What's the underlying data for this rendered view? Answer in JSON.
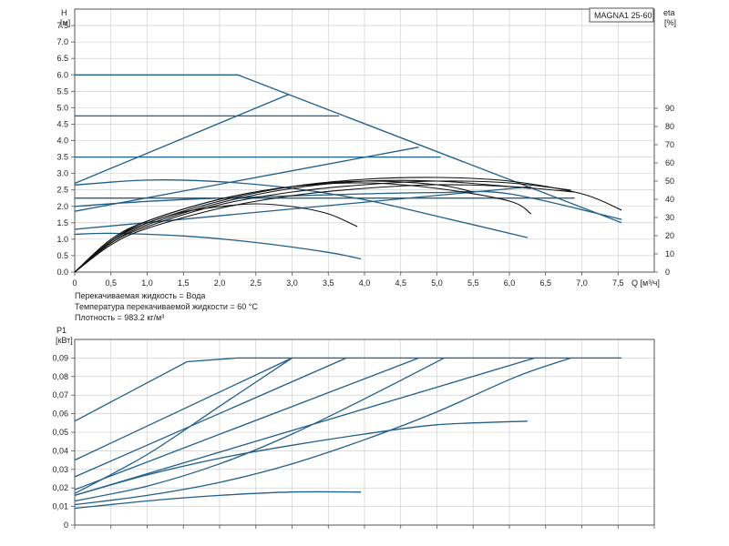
{
  "notes": [
    "Перекачиваемая жидкость = Вода",
    "Температура перекачиваемой жидкости = 60 °C",
    "Плотность = 983.2 кг/м³"
  ],
  "colors": {
    "curve": "#1f5f8b",
    "eff": "#111111",
    "grid": "#c8c8c8",
    "axis": "#555555"
  },
  "chart_data": [
    {
      "type": "line",
      "title": "MAGNA1 25-60",
      "xlabel": "Q [м³/ч]",
      "ylabel": "H\n[м]",
      "y2label": "eta\n[%]",
      "xlim": [
        0,
        8
      ],
      "ylim": [
        0,
        8
      ],
      "y2lim": [
        0,
        100
      ],
      "xticks": [
        "0",
        "0,5",
        "1,0",
        "1,5",
        "2,0",
        "2,5",
        "3,0",
        "3,5",
        "4,0",
        "4,5",
        "5,0",
        "5,5",
        "6,0",
        "6,5",
        "7,0",
        "7,5"
      ],
      "yticks": [
        "0.0",
        "0.5",
        "1.0",
        "1.5",
        "2.0",
        "2.5",
        "3.0",
        "3.5",
        "4.0",
        "4.5",
        "5.0",
        "5.5",
        "6.0",
        "6.5",
        "7.0",
        "7.5"
      ],
      "y2ticks": [
        "0",
        "10",
        "20",
        "30",
        "40",
        "50",
        "60",
        "70",
        "80",
        "90"
      ],
      "grid": true,
      "series": [
        {
          "kind": "head",
          "x": [
            0,
            2.25,
            7.55
          ],
          "y": [
            6.0,
            6.0,
            1.5
          ]
        },
        {
          "kind": "head",
          "x": [
            0,
            3.65
          ],
          "y": [
            4.75,
            4.75
          ]
        },
        {
          "kind": "head",
          "x": [
            0,
            5.05
          ],
          "y": [
            3.5,
            3.5
          ]
        },
        {
          "kind": "head",
          "x": [
            0,
            6.9
          ],
          "y": [
            2.25,
            2.25
          ]
        },
        {
          "kind": "head",
          "x": [
            0,
            2.95
          ],
          "y": [
            2.7,
            5.4
          ]
        },
        {
          "kind": "head",
          "x": [
            0,
            4.75
          ],
          "y": [
            1.85,
            3.8
          ]
        },
        {
          "kind": "head",
          "x": [
            0,
            6.3
          ],
          "y": [
            1.3,
            2.6
          ]
        },
        {
          "kind": "head",
          "x": [
            0,
            1.0,
            2.0,
            3.0,
            4.0,
            5.0,
            6.25
          ],
          "y": [
            2.65,
            2.8,
            2.75,
            2.55,
            2.2,
            1.7,
            1.05
          ]
        },
        {
          "kind": "head",
          "x": [
            0,
            0.5,
            1.5,
            2.5,
            3.5,
            3.95
          ],
          "y": [
            1.15,
            1.18,
            1.1,
            0.9,
            0.6,
            0.4
          ]
        },
        {
          "kind": "head",
          "x": [
            0,
            1.0,
            2.0,
            3.0,
            4.0,
            5.0,
            6.0,
            7.55
          ],
          "y": [
            2.0,
            2.15,
            2.25,
            2.32,
            2.38,
            2.42,
            2.38,
            1.6
          ]
        },
        {
          "kind": "eff",
          "x": [
            0,
            0.5,
            1.0,
            1.5,
            2.0,
            2.5,
            3.0,
            3.5,
            3.9
          ],
          "y": [
            0,
            17,
            27,
            33,
            36,
            37.5,
            36,
            32,
            25
          ]
        },
        {
          "kind": "eff",
          "x": [
            0,
            0.5,
            1.0,
            2.0,
            3.0,
            4.0,
            5.0,
            6.0,
            6.3
          ],
          "y": [
            0,
            17,
            28,
            40,
            47,
            49,
            46,
            39,
            32
          ]
        },
        {
          "kind": "eff",
          "x": [
            0,
            0.5,
            1.0,
            2.0,
            3.0,
            4.0,
            5.0,
            6.0,
            7.0,
            7.55
          ],
          "y": [
            0,
            17,
            27,
            39,
            47,
            51,
            52,
            50,
            43,
            34
          ]
        },
        {
          "kind": "eff",
          "x": [
            0,
            0.5,
            1.0,
            2.0,
            3.0,
            4.0,
            5.0,
            6.0,
            6.3
          ],
          "y": [
            0,
            16,
            26,
            38,
            46,
            50,
            50,
            47,
            46
          ]
        },
        {
          "kind": "eff",
          "x": [
            0,
            0.5,
            1.0,
            2.0,
            3.0,
            4.0,
            5.0,
            6.0,
            6.85
          ],
          "y": [
            0,
            16,
            25,
            37,
            44,
            48,
            50,
            49,
            45
          ]
        },
        {
          "kind": "eff",
          "x": [
            0,
            0.5,
            1.0,
            2.0,
            3.0,
            4.0,
            5.0,
            5.5
          ],
          "y": [
            0,
            18,
            28,
            40,
            47,
            50,
            48,
            44
          ]
        },
        {
          "kind": "eff",
          "x": [
            0,
            0.5,
            1.0,
            2.0,
            3.0,
            4.0,
            5.0,
            6.0,
            6.9
          ],
          "y": [
            0,
            15,
            24,
            35,
            42,
            46,
            48,
            47,
            44
          ]
        }
      ]
    },
    {
      "type": "line",
      "title": "",
      "xlabel": "",
      "ylabel": "P1\n[кВт]",
      "xlim": [
        0,
        8
      ],
      "ylim": [
        0,
        0.1
      ],
      "yticks": [
        "0",
        "0,01",
        "0,02",
        "0,03",
        "0,04",
        "0,05",
        "0,06",
        "0,07",
        "0,08",
        "0,09"
      ],
      "grid": true,
      "series": [
        {
          "kind": "power",
          "x": [
            0,
            1.55,
            2.25,
            7.55
          ],
          "y": [
            0.056,
            0.088,
            0.09,
            0.09
          ]
        },
        {
          "kind": "power",
          "x": [
            0,
            3.0
          ],
          "y": [
            0.035,
            0.09
          ]
        },
        {
          "kind": "power",
          "x": [
            0,
            3.75
          ],
          "y": [
            0.026,
            0.09
          ]
        },
        {
          "kind": "power",
          "x": [
            0,
            4.75
          ],
          "y": [
            0.019,
            0.09
          ]
        },
        {
          "kind": "power",
          "x": [
            0,
            6.35
          ],
          "y": [
            0.016,
            0.09
          ]
        },
        {
          "kind": "power",
          "x": [
            0,
            1.0,
            2.0,
            3.0
          ],
          "y": [
            0.017,
            0.038,
            0.064,
            0.09
          ]
        },
        {
          "kind": "power",
          "x": [
            0,
            1.0,
            2.0,
            3.0,
            4.0,
            5.1
          ],
          "y": [
            0.013,
            0.021,
            0.033,
            0.049,
            0.068,
            0.09
          ]
        },
        {
          "kind": "power",
          "x": [
            0,
            1.0,
            2.0,
            3.0,
            4.0,
            5.0,
            6.1,
            6.85
          ],
          "y": [
            0.011,
            0.016,
            0.023,
            0.033,
            0.046,
            0.061,
            0.08,
            0.09
          ]
        },
        {
          "kind": "power",
          "x": [
            0,
            1.0,
            2.0,
            3.0,
            4.0,
            5.0,
            6.25
          ],
          "y": [
            0.016,
            0.027,
            0.036,
            0.043,
            0.049,
            0.054,
            0.056
          ]
        },
        {
          "kind": "power",
          "x": [
            0,
            1.0,
            2.0,
            3.0,
            3.95
          ],
          "y": [
            0.009,
            0.013,
            0.016,
            0.0178,
            0.0178
          ]
        }
      ]
    }
  ]
}
